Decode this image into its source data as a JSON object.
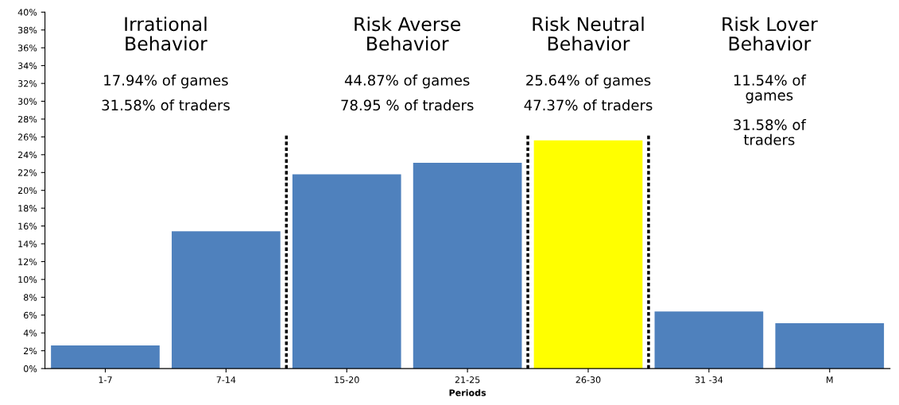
{
  "chart_data": {
    "type": "bar",
    "xlabel": "Periods",
    "categories": [
      "1-7",
      "7-14",
      "15-20",
      "21-25",
      "26-30",
      "31 -34",
      "M"
    ],
    "values": [
      2.6,
      15.4,
      21.8,
      23.1,
      25.6,
      6.4,
      5.1
    ],
    "colors": [
      "#4f81bd",
      "#4f81bd",
      "#4f81bd",
      "#4f81bd",
      "#ffff00",
      "#4f81bd",
      "#4f81bd"
    ],
    "ylim": [
      0,
      40
    ],
    "yticks": [
      {
        "value": 0,
        "label": "0%"
      },
      {
        "value": 2,
        "label": "2%"
      },
      {
        "value": 4,
        "label": "4%"
      },
      {
        "value": 6,
        "label": "6%"
      },
      {
        "value": 8,
        "label": "8%"
      },
      {
        "value": 10,
        "label": "10%"
      },
      {
        "value": 12,
        "label": "12%"
      },
      {
        "value": 14,
        "label": "14%"
      },
      {
        "value": 16,
        "label": "16%"
      },
      {
        "value": 18,
        "label": "18%"
      },
      {
        "value": 20,
        "label": "20%"
      },
      {
        "value": 22,
        "label": "22%"
      },
      {
        "value": 24,
        "label": "24%"
      },
      {
        "value": 26,
        "label": "26%"
      },
      {
        "value": 28,
        "label": "28%"
      },
      {
        "value": 30,
        "label": "30%"
      },
      {
        "value": 32,
        "label": "32%"
      },
      {
        "value": 34,
        "label": "34%"
      },
      {
        "value": 36,
        "label": "36%"
      },
      {
        "value": 38,
        "label": "38%"
      },
      {
        "value": 40,
        "label": "40%"
      }
    ],
    "annotations": [
      "Irrational\nBehavior",
      "17.94% of games",
      "31.58% of traders",
      "Risk Averse\nBehavior",
      "44.87% of games",
      "78.95 % of traders",
      "Risk Neutral\nBehavior",
      "25.64% of games",
      "47.37% of traders",
      "Risk Lover\nBehavior",
      "11.54% of\ngames",
      "31.58% of\ntraders"
    ],
    "grid": false
  }
}
